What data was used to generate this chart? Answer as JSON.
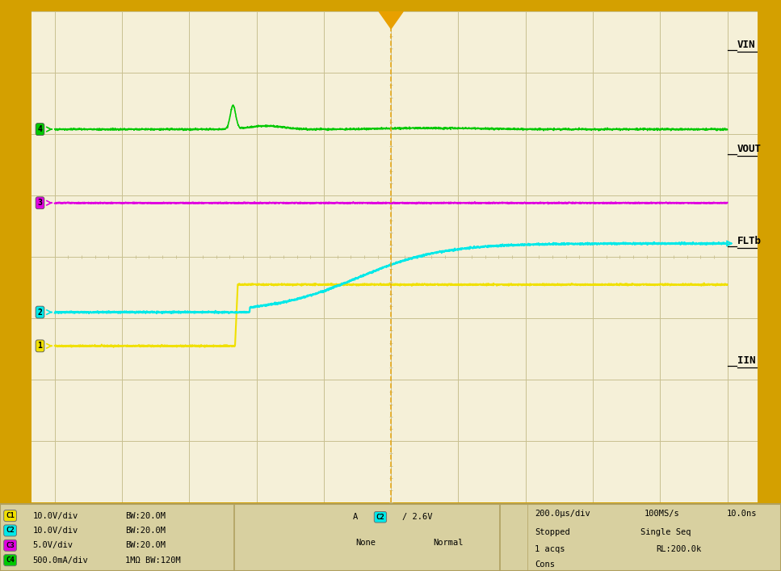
{
  "bg_color": "#f5f0d8",
  "grid_color": "#c8c090",
  "border_color": "#d4a000",
  "plot_bg": "#f5f0d8",
  "n_hdiv": 10,
  "n_vdiv": 8,
  "ch1_color": "#f0e000",
  "ch2_color": "#00e8e8",
  "ch3_color": "#e000e0",
  "ch4_color": "#00c800",
  "label_color": "#000000",
  "footer_bg": "#d8d0a0",
  "footer_border": "#b0a060",
  "ch1_label": "VIN",
  "ch2_label": "VOUT",
  "ch3_label": "FLTb",
  "ch4_label": "IIN",
  "cursor_color": "#e8a000",
  "trigger_color": "#e8a000",
  "footer_texts": [
    [
      "C1",
      "10.0V/div",
      "BW:20.0M"
    ],
    [
      "C2",
      "10.0V/div",
      "BW:20.0M"
    ],
    [
      "C3",
      "5.0V/div",
      "BW:20.0M"
    ],
    [
      "C4",
      "500.0mA/div",
      "1MΩ BW:120M"
    ]
  ],
  "ch_badge_colors": [
    "#f0e000",
    "#00e8e8",
    "#e000e0",
    "#00c800"
  ]
}
